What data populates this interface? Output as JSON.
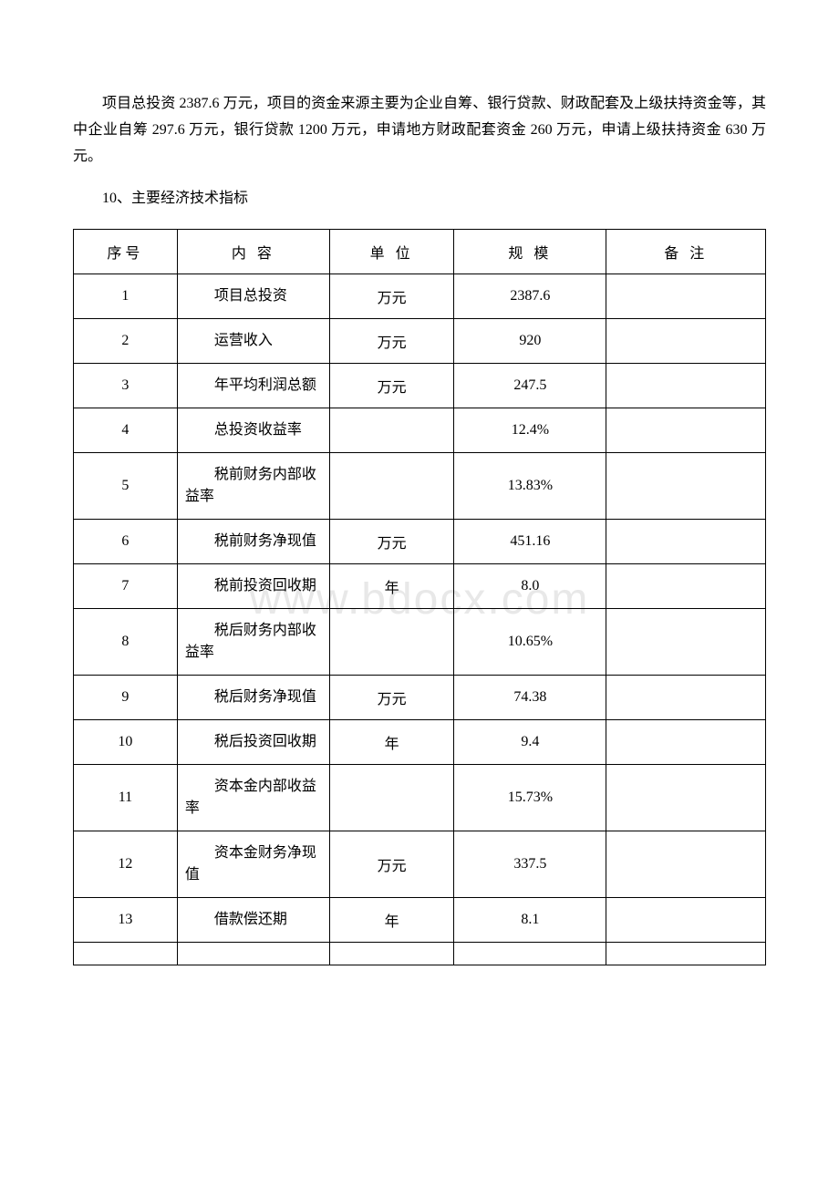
{
  "paragraph1": "项目总投资 2387.6 万元，项目的资金来源主要为企业自筹、银行贷款、财政配套及上级扶持资金等，其中企业自筹 297.6 万元，银行贷款 1200 万元，申请地方财政配套资金 260 万元，申请上级扶持资金 630 万元。",
  "sectionHeading": "10、主要经济技术指标",
  "watermark": "www.bdocx.com",
  "table": {
    "headers": {
      "seq": "序号",
      "content": "内 容",
      "unit": "单 位",
      "scale": "规 模",
      "note": "备 注"
    },
    "rows": [
      {
        "seq": "1",
        "content": "项目总投资",
        "unit": "万元",
        "scale": "2387.6",
        "note": ""
      },
      {
        "seq": "2",
        "content": "运营收入",
        "unit": "万元",
        "scale": "920",
        "note": ""
      },
      {
        "seq": "3",
        "content": "年平均利润总额",
        "unit": "万元",
        "scale": "247.5",
        "note": ""
      },
      {
        "seq": "4",
        "content": "总投资收益率",
        "unit": "",
        "scale": "12.4%",
        "note": ""
      },
      {
        "seq": "5",
        "content": "税前财务内部收益率",
        "unit": "",
        "scale": "13.83%",
        "note": ""
      },
      {
        "seq": "6",
        "content": "税前财务净现值",
        "unit": "万元",
        "scale": "451.16",
        "note": ""
      },
      {
        "seq": "7",
        "content": "税前投资回收期",
        "unit": "年",
        "scale": "8.0",
        "note": ""
      },
      {
        "seq": "8",
        "content": "税后财务内部收益率",
        "unit": "",
        "scale": "10.65%",
        "note": ""
      },
      {
        "seq": "9",
        "content": "税后财务净现值",
        "unit": "万元",
        "scale": "74.38",
        "note": ""
      },
      {
        "seq": "10",
        "content": "税后投资回收期",
        "unit": "年",
        "scale": "9.4",
        "note": ""
      },
      {
        "seq": "11",
        "content": "资本金内部收益率",
        "unit": "",
        "scale": "15.73%",
        "note": ""
      },
      {
        "seq": "12",
        "content": "资本金财务净现值",
        "unit": "万元",
        "scale": "337.5",
        "note": ""
      },
      {
        "seq": "13",
        "content": "借款偿还期",
        "unit": "年",
        "scale": "8.1",
        "note": ""
      }
    ]
  }
}
